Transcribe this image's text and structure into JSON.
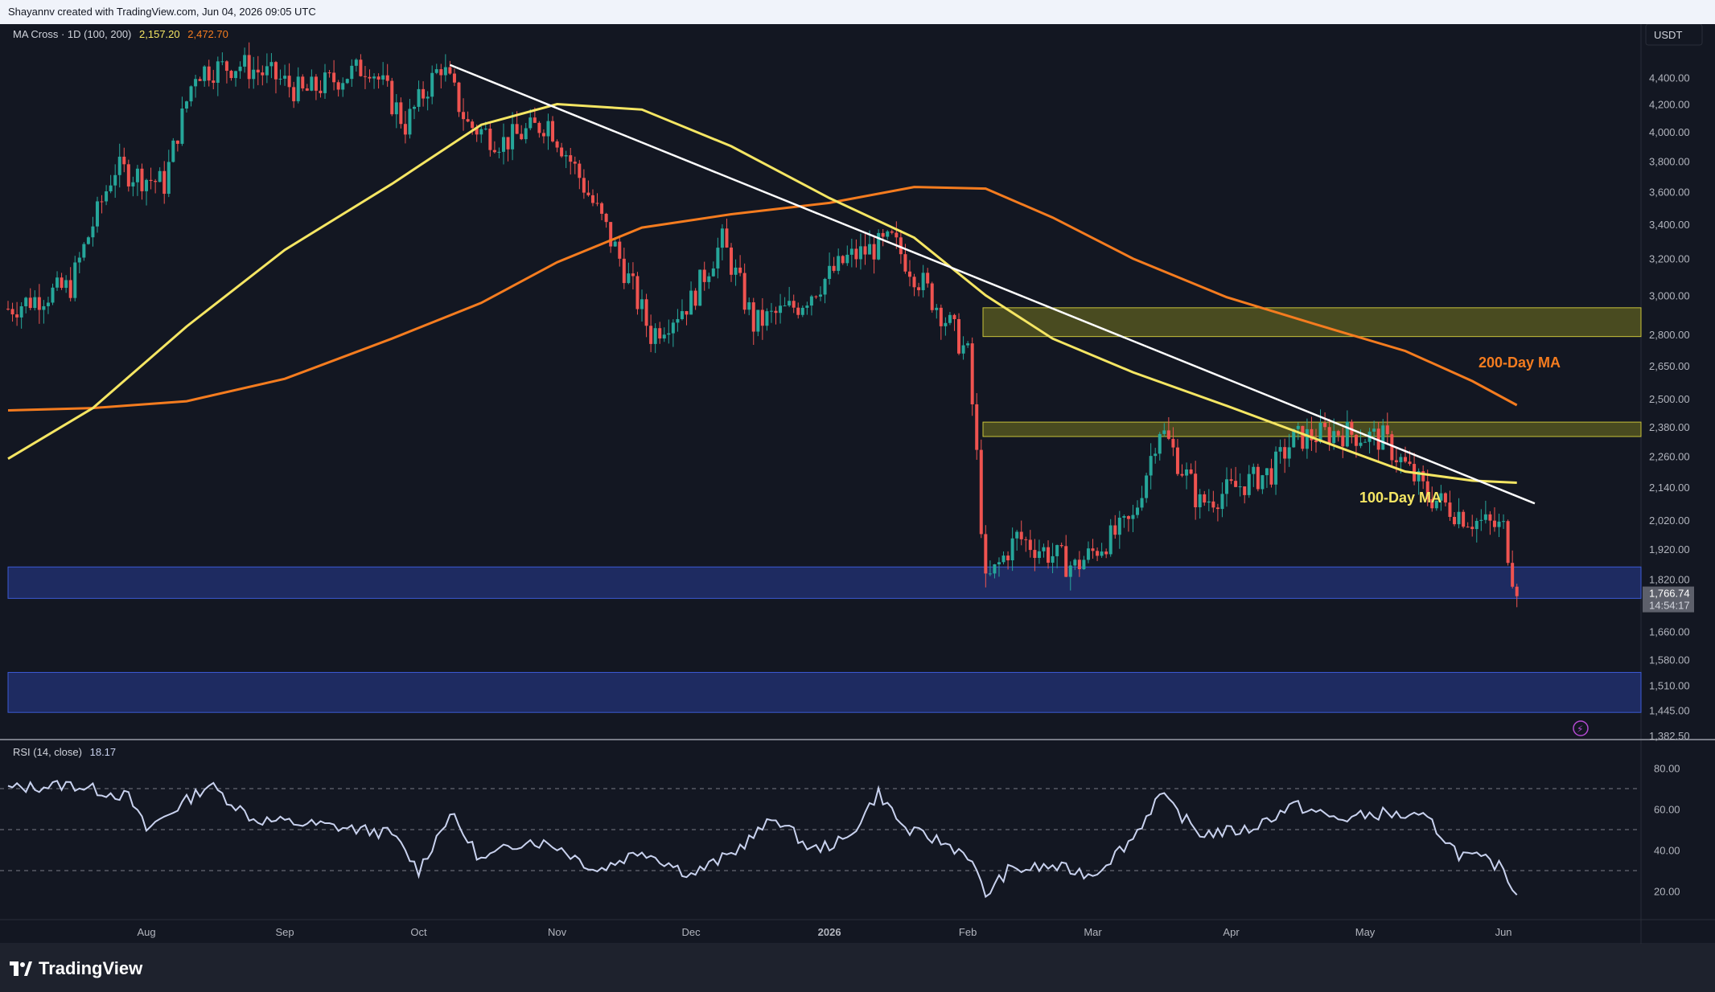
{
  "header": {
    "attribution": "Shayannv created with TradingView.com, Jun 04, 2026 09:05 UTC"
  },
  "indicator": {
    "label": "MA Cross · 1D (100, 200)",
    "ma100_value": "2,157.20",
    "ma200_value": "2,472.70",
    "ma100_color": "#f5e663",
    "ma200_color": "#f57c1f"
  },
  "rsi": {
    "label": "RSI (14, close)",
    "value": "18.17",
    "color": "#c9d2ef"
  },
  "price_axis": {
    "currency": "USDT",
    "ticks": [
      "4,400.00",
      "4,200.00",
      "4,000.00",
      "3,800.00",
      "3,600.00",
      "3,400.00",
      "3,200.00",
      "3,000.00",
      "2,800.00",
      "2,650.00",
      "2,500.00",
      "2,380.00",
      "2,260.00",
      "2,140.00",
      "2,020.00",
      "1,920.00",
      "1,820.00",
      "1,660.00",
      "1,580.00",
      "1,510.00",
      "1,445.00",
      "1,382.50"
    ],
    "current_price": "1,766.74",
    "countdown": "14:54:17"
  },
  "rsi_axis": {
    "ticks": [
      "80.00",
      "60.00",
      "40.00",
      "20.00"
    ]
  },
  "time_axis": {
    "labels": [
      "Aug",
      "Sep",
      "Oct",
      "Nov",
      "Dec",
      "2026",
      "Feb",
      "Mar",
      "Apr",
      "May",
      "Jun"
    ]
  },
  "annotations": {
    "ma200_label": "200-Day MA",
    "ma100_label": "100-Day MA"
  },
  "colors": {
    "up": "#26a69a",
    "down": "#ef5350",
    "trendline": "#ffffff",
    "zone_yellow": "#8a8a1f",
    "zone_blue": "#2a3a8c"
  },
  "footer": {
    "brand": "TradingView"
  },
  "chart_data": {
    "type": "candlestick",
    "title": "",
    "y_scale": "log",
    "ylim": [
      1382.5,
      4700
    ],
    "x_range": [
      "2025-07-01",
      "2026-06-30"
    ],
    "series": [
      {
        "name": "100-Day MA",
        "type": "line",
        "points": [
          [
            "2025-07-01",
            2250
          ],
          [
            "2025-07-20",
            2460
          ],
          [
            "2025-08-10",
            2840
          ],
          [
            "2025-09-01",
            3250
          ],
          [
            "2025-09-25",
            3650
          ],
          [
            "2025-10-15",
            4050
          ],
          [
            "2025-11-01",
            4200
          ],
          [
            "2025-11-20",
            4160
          ],
          [
            "2025-12-10",
            3900
          ],
          [
            "2026-01-01",
            3560
          ],
          [
            "2026-01-20",
            3320
          ],
          [
            "2026-02-05",
            3000
          ],
          [
            "2026-02-20",
            2780
          ],
          [
            "2026-03-10",
            2620
          ],
          [
            "2026-03-31",
            2470
          ],
          [
            "2026-04-20",
            2330
          ],
          [
            "2026-05-10",
            2200
          ],
          [
            "2026-05-25",
            2165
          ],
          [
            "2026-06-04",
            2157.2
          ]
        ]
      },
      {
        "name": "200-Day MA",
        "type": "line",
        "points": [
          [
            "2025-07-01",
            2450
          ],
          [
            "2025-07-20",
            2460
          ],
          [
            "2025-08-10",
            2490
          ],
          [
            "2025-09-01",
            2590
          ],
          [
            "2025-09-25",
            2780
          ],
          [
            "2025-10-15",
            2960
          ],
          [
            "2025-11-01",
            3180
          ],
          [
            "2025-11-20",
            3380
          ],
          [
            "2025-12-10",
            3460
          ],
          [
            "2026-01-01",
            3530
          ],
          [
            "2026-01-20",
            3630
          ],
          [
            "2026-02-05",
            3620
          ],
          [
            "2026-02-20",
            3440
          ],
          [
            "2026-03-10",
            3200
          ],
          [
            "2026-03-31",
            2990
          ],
          [
            "2026-04-20",
            2850
          ],
          [
            "2026-05-10",
            2720
          ],
          [
            "2026-05-25",
            2580
          ],
          [
            "2026-06-04",
            2472.7
          ]
        ]
      },
      {
        "name": "Downtrend line",
        "type": "line",
        "points": [
          [
            "2025-10-08",
            4500
          ],
          [
            "2026-06-08",
            2080
          ]
        ]
      }
    ],
    "candles_anchor_closes": [
      [
        "2025-07-01",
        2930
      ],
      [
        "2025-07-15",
        3050
      ],
      [
        "2025-07-25",
        3750
      ],
      [
        "2025-08-05",
        3650
      ],
      [
        "2025-08-12",
        4450
      ],
      [
        "2025-08-22",
        4500
      ],
      [
        "2025-08-30",
        4400
      ],
      [
        "2025-09-05",
        4280
      ],
      [
        "2025-09-20",
        4500
      ],
      [
        "2025-09-28",
        4050
      ],
      [
        "2025-10-06",
        4500
      ],
      [
        "2025-10-12",
        4050
      ],
      [
        "2025-10-20",
        3930
      ],
      [
        "2025-10-30",
        4070
      ],
      [
        "2025-11-05",
        3750
      ],
      [
        "2025-11-15",
        3200
      ],
      [
        "2025-11-22",
        2800
      ],
      [
        "2025-12-01",
        2970
      ],
      [
        "2025-12-08",
        3300
      ],
      [
        "2025-12-15",
        2850
      ],
      [
        "2025-12-25",
        2950
      ],
      [
        "2026-01-05",
        3200
      ],
      [
        "2026-01-15",
        3300
      ],
      [
        "2026-01-25",
        2950
      ],
      [
        "2026-02-01",
        2700
      ],
      [
        "2026-02-05",
        1800
      ],
      [
        "2026-02-12",
        1960
      ],
      [
        "2026-02-25",
        1860
      ],
      [
        "2026-03-10",
        2020
      ],
      [
        "2026-03-16",
        2380
      ],
      [
        "2026-03-25",
        2080
      ],
      [
        "2026-04-10",
        2200
      ],
      [
        "2026-04-15",
        2330
      ],
      [
        "2026-04-25",
        2360
      ],
      [
        "2026-05-05",
        2330
      ],
      [
        "2026-05-15",
        2110
      ],
      [
        "2026-05-25",
        2020
      ],
      [
        "2026-06-01",
        1990
      ],
      [
        "2026-06-04",
        1766.74
      ]
    ],
    "zones": [
      {
        "color": "yellow",
        "from": 2790,
        "to": 2935
      },
      {
        "color": "yellow",
        "from": 2340,
        "to": 2400
      },
      {
        "color": "blue",
        "from": 1760,
        "to": 1860
      },
      {
        "color": "blue",
        "from": 1440,
        "to": 1545
      }
    ],
    "rsi_series": [
      [
        "2025-07-01",
        70
      ],
      [
        "2025-07-15",
        72
      ],
      [
        "2025-07-28",
        66
      ],
      [
        "2025-08-01",
        50
      ],
      [
        "2025-08-15",
        72
      ],
      [
        "2025-08-25",
        55
      ],
      [
        "2025-09-10",
        52
      ],
      [
        "2025-09-25",
        48
      ],
      [
        "2025-10-01",
        30
      ],
      [
        "2025-10-08",
        58
      ],
      [
        "2025-10-15",
        35
      ],
      [
        "2025-10-25",
        45
      ],
      [
        "2025-11-01",
        42
      ],
      [
        "2025-11-10",
        30
      ],
      [
        "2025-11-20",
        40
      ],
      [
        "2025-12-01",
        28
      ],
      [
        "2025-12-10",
        38
      ],
      [
        "2025-12-20",
        56
      ],
      [
        "2025-12-28",
        40
      ],
      [
        "2026-01-05",
        45
      ],
      [
        "2026-01-12",
        68
      ],
      [
        "2026-01-18",
        50
      ],
      [
        "2026-01-25",
        45
      ],
      [
        "2026-02-01",
        38
      ],
      [
        "2026-02-05",
        18
      ],
      [
        "2026-02-10",
        30
      ],
      [
        "2026-02-20",
        32
      ],
      [
        "2026-03-01",
        28
      ],
      [
        "2026-03-10",
        46
      ],
      [
        "2026-03-16",
        67
      ],
      [
        "2026-03-25",
        48
      ],
      [
        "2026-04-05",
        50
      ],
      [
        "2026-04-15",
        62
      ],
      [
        "2026-04-25",
        55
      ],
      [
        "2026-05-05",
        58
      ],
      [
        "2026-05-15",
        55
      ],
      [
        "2026-05-22",
        38
      ],
      [
        "2026-05-28",
        35
      ],
      [
        "2026-06-01",
        31
      ],
      [
        "2026-06-04",
        18.17
      ]
    ]
  }
}
